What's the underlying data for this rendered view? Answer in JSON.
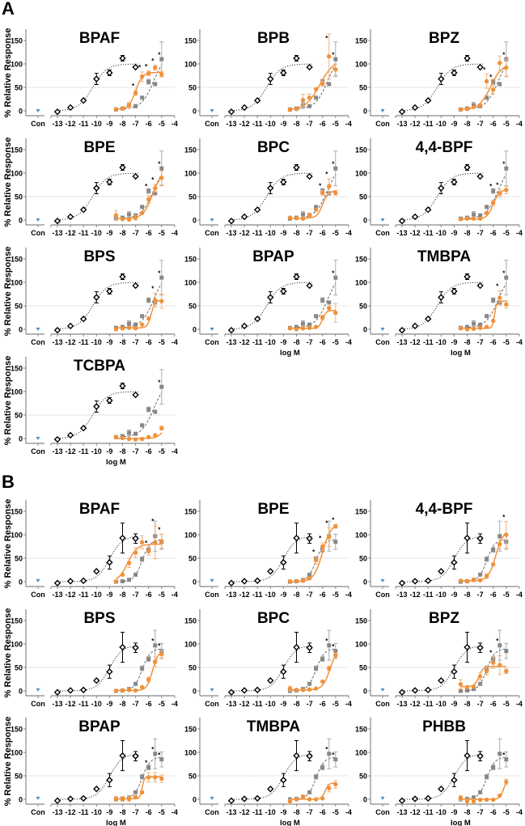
{
  "colors": {
    "reference": "#000000",
    "comparator": "#878787",
    "test": "#f0913a",
    "control": "#4a8fcc",
    "halfline": "#bdbdbd"
  },
  "common": {
    "ylabel": "% Relative Response",
    "xlabel": "log M",
    "control_label": "Con",
    "sig_mark": "*",
    "yticks": [
      "0",
      "50",
      "100",
      "150"
    ],
    "xticks": [
      "-13",
      "-12",
      "-11",
      "-10",
      "-9",
      "-8",
      "-7",
      "-6",
      "-5",
      "-4"
    ],
    "ylim": [
      0,
      150
    ],
    "xlim": [
      -13,
      -4
    ]
  },
  "chart_data": [
    {
      "type": "scatter",
      "figure_label": "A",
      "reference": {
        "x": [
          -13,
          -12,
          -11,
          -10,
          -9,
          -8,
          -7
        ],
        "y": [
          -2,
          7,
          22,
          68,
          81,
          112,
          93
        ],
        "err": [
          0,
          0,
          0,
          12,
          6,
          6,
          0
        ],
        "fit": {
          "bottom": 0,
          "top": 100,
          "logEC50": -10.3,
          "hill": 0.8
        }
      },
      "comparator": {
        "x": [
          -8.5,
          -8,
          -7.5,
          -7,
          -6.5,
          -6,
          -5.5,
          -5
        ],
        "y": [
          3,
          5,
          12,
          10,
          28,
          62,
          57,
          110
        ],
        "err": [
          0,
          0,
          6,
          3,
          0,
          5,
          0,
          37
        ],
        "fit": {
          "bottom": 3,
          "top": 125,
          "logEC50": -5.6,
          "hill": 0.9
        }
      },
      "control": {
        "y": 0
      },
      "panels": [
        {
          "title": "BPAF",
          "y": [
            3,
            5,
            12,
            38,
            73,
            80,
            92,
            78
          ],
          "err": [
            0,
            0,
            6,
            5,
            10,
            5,
            5,
            6
          ],
          "sig": [
            -7,
            -6.5,
            -6,
            -5.5,
            -5
          ],
          "fit": {
            "bottom": 3,
            "top": 82,
            "logEC50": -7.0,
            "hill": 1.6
          }
        },
        {
          "title": "BPB",
          "y": [
            2,
            4,
            23,
            28,
            46,
            58,
            116,
            88
          ],
          "err": [
            0,
            0,
            12,
            8,
            0,
            5,
            48,
            12
          ],
          "sig": [
            -5.5,
            -5
          ],
          "fit": {
            "bottom": 2,
            "top": 110,
            "logEC50": -6.2,
            "hill": 0.8
          }
        },
        {
          "title": "BPZ",
          "y": [
            3,
            4,
            8,
            12,
            63,
            45,
            102,
            92
          ],
          "err": [
            0,
            0,
            0,
            0,
            15,
            10,
            15,
            18
          ],
          "sig": [
            -6.5,
            -6,
            -5
          ],
          "fit": {
            "bottom": 3,
            "top": 100,
            "logEC50": -6.2,
            "hill": 1.0
          }
        },
        {
          "title": "BPE",
          "y": [
            10,
            2,
            1,
            5,
            15,
            44,
            68,
            90
          ],
          "err": [
            10,
            0,
            0,
            5,
            0,
            8,
            8,
            15
          ],
          "sig": [
            -6,
            -5.5,
            -5
          ],
          "fit": {
            "bottom": 3,
            "top": 105,
            "logEC50": -5.7,
            "hill": 1.2
          }
        },
        {
          "title": "BPC",
          "y": [
            5,
            4,
            3,
            10,
            22,
            58,
            72,
            58
          ],
          "err": [
            0,
            0,
            0,
            5,
            0,
            5,
            16,
            5
          ],
          "sig": [
            -6,
            -5.5,
            -5
          ],
          "fit": {
            "bottom": 4,
            "top": 62,
            "logEC50": -6.0,
            "hill": 2.0
          }
        },
        {
          "title": "4,4-BPF",
          "y": [
            2,
            3,
            3,
            3,
            15,
            37,
            57,
            64
          ],
          "err": [
            0,
            0,
            0,
            0,
            0,
            5,
            8,
            8
          ],
          "sig": [
            -6,
            -5.5,
            -5
          ],
          "fit": {
            "bottom": 2,
            "top": 65,
            "logEC50": -6.0,
            "hill": 1.8
          }
        },
        {
          "title": "BPS",
          "y": [
            0,
            2,
            3,
            2,
            10,
            23,
            62,
            60
          ],
          "err": [
            0,
            0,
            0,
            0,
            0,
            0,
            15,
            15
          ],
          "sig": [
            -5.5,
            -5
          ],
          "fit": {
            "bottom": 3,
            "top": 62,
            "logEC50": -5.8,
            "hill": 3.0
          }
        },
        {
          "title": "BPAP",
          "y": [
            2,
            0,
            2,
            3,
            5,
            25,
            45,
            35
          ],
          "err": [
            0,
            0,
            0,
            0,
            0,
            5,
            5,
            20
          ],
          "sig": [
            -5
          ],
          "fit": {
            "bottom": 2,
            "top": 40,
            "logEC50": -6.0,
            "hill": 3.0
          },
          "show_xlabel": true
        },
        {
          "title": "TMBPA",
          "y": [
            2,
            0,
            1,
            3,
            5,
            18,
            67,
            53
          ],
          "err": [
            0,
            0,
            0,
            0,
            0,
            0,
            15,
            8
          ],
          "sig": [
            -5.5,
            -5
          ],
          "fit": {
            "bottom": 2,
            "top": 60,
            "logEC50": -5.9,
            "hill": 5.0
          },
          "show_xlabel": true
        },
        {
          "title": "TCBPA",
          "y": [
            3,
            1,
            -1,
            -2,
            -1,
            3,
            7,
            22
          ],
          "err": [
            0,
            0,
            0,
            0,
            0,
            0,
            0,
            4
          ],
          "sig": [
            -5
          ],
          "fit": {
            "bottom": 0,
            "top": 60,
            "logEC50": -4.6,
            "hill": 1.5
          },
          "show_xlabel": true
        }
      ]
    },
    {
      "type": "scatter",
      "figure_label": "B",
      "reference": {
        "x": [
          -13,
          -12,
          -11,
          -10,
          -9,
          -8,
          -7
        ],
        "y": [
          -3,
          1,
          2,
          22,
          41,
          93,
          92
        ],
        "err": [
          0,
          0,
          0,
          0,
          14,
          32,
          10
        ],
        "fit": {
          "bottom": 0,
          "top": 97,
          "logEC50": -9.0,
          "hill": 0.9
        }
      },
      "comparator": {
        "x": [
          -8.5,
          -8,
          -7.5,
          -7,
          -6.5,
          -6,
          -5.5,
          -5
        ],
        "y": [
          0,
          1,
          4,
          15,
          48,
          68,
          97,
          85
        ],
        "err": [
          0,
          0,
          0,
          0,
          5,
          5,
          32,
          16
        ],
        "fit": {
          "bottom": 0,
          "top": 90,
          "logEC50": -6.5,
          "hill": 1.4
        }
      },
      "control": {
        "y": 2
      },
      "panels": [
        {
          "title": "BPAF",
          "y": [
            0,
            15,
            40,
            62,
            84,
            65,
            84,
            86
          ],
          "err": [
            0,
            0,
            10,
            10,
            14,
            8,
            35,
            15
          ],
          "sig": [
            -6,
            -5.5,
            -5
          ],
          "fit": {
            "bottom": 0,
            "top": 80,
            "logEC50": -7.6,
            "hill": 1.2
          }
        },
        {
          "title": "BPE",
          "y": [
            1,
            1,
            3,
            7,
            46,
            75,
            95,
            118
          ],
          "err": [
            0,
            0,
            5,
            0,
            8,
            8,
            20,
            4
          ],
          "sig": [
            -6.5,
            -6,
            -5.5,
            -5
          ],
          "fit": {
            "bottom": 0,
            "top": 125,
            "logEC50": -6.0,
            "hill": 1.3
          }
        },
        {
          "title": "4,4-BPF",
          "y": [
            2,
            1,
            4,
            3,
            12,
            37,
            80,
            100
          ],
          "err": [
            0,
            0,
            0,
            0,
            5,
            0,
            10,
            28
          ],
          "sig": [
            -5
          ],
          "fit": {
            "bottom": 2,
            "top": 110,
            "logEC50": -5.8,
            "hill": 1.5
          }
        },
        {
          "title": "BPS",
          "y": [
            0,
            1,
            2,
            1,
            8,
            24,
            62,
            78
          ],
          "err": [
            0,
            0,
            0,
            0,
            0,
            5,
            10,
            8
          ],
          "sig": [
            -5.5,
            -5
          ],
          "fit": {
            "bottom": 1,
            "top": 85,
            "logEC50": -5.7,
            "hill": 2.0
          }
        },
        {
          "title": "BPC",
          "y": [
            5,
            2,
            2,
            3,
            5,
            20,
            48,
            76
          ],
          "err": [
            5,
            0,
            0,
            0,
            0,
            0,
            5,
            5
          ],
          "sig": [
            -5.5,
            -5
          ],
          "fit": {
            "bottom": 2,
            "top": 95,
            "logEC50": -5.4,
            "hill": 1.5
          }
        },
        {
          "title": "BPZ",
          "y": [
            14,
            8,
            9,
            31,
            42,
            60,
            55,
            42
          ],
          "err": [
            10,
            0,
            0,
            8,
            8,
            12,
            20,
            5
          ],
          "sig": [
            -6,
            -5.5
          ],
          "fit": {
            "bottom": 9,
            "top": 52,
            "logEC50": -7.1,
            "hill": 2.5
          }
        },
        {
          "title": "BPAP",
          "y": [
            1,
            1,
            1,
            5,
            15,
            47,
            47,
            44
          ],
          "err": [
            5,
            5,
            5,
            0,
            0,
            10,
            10,
            8
          ],
          "sig": [
            -6,
            -5.5,
            -5
          ],
          "fit": {
            "bottom": 1,
            "top": 48,
            "logEC50": -6.5,
            "hill": 5.0
          },
          "show_xlabel": true
        },
        {
          "title": "TMBPA",
          "y": [
            -5,
            0,
            5,
            0,
            0,
            2,
            24,
            32
          ],
          "err": [
            5,
            0,
            5,
            0,
            0,
            0,
            8,
            8
          ],
          "sig": [
            -5.5,
            -5
          ],
          "fit": {
            "bottom": 0,
            "top": 35,
            "logEC50": -5.8,
            "hill": 3.0
          },
          "show_xlabel": true
        },
        {
          "title": "PHBB",
          "y": [
            3,
            -4,
            -4,
            -1,
            -1,
            -1,
            8,
            37
          ],
          "err": [
            5,
            5,
            5,
            0,
            0,
            0,
            0,
            6
          ],
          "sig": [
            -5
          ],
          "fit": {
            "bottom": 0,
            "top": 45,
            "logEC50": -5.2,
            "hill": 3.0
          },
          "show_xlabel": true
        }
      ]
    }
  ]
}
